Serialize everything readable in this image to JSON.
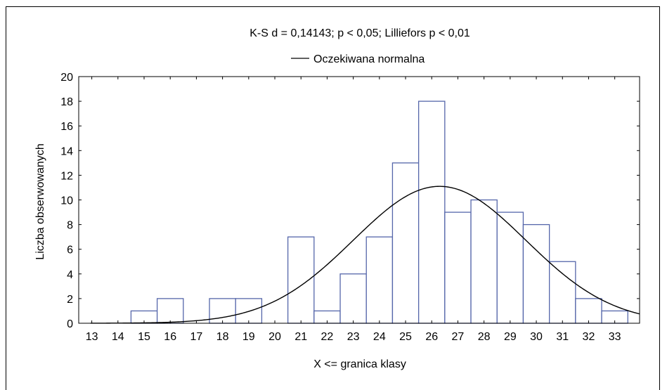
{
  "chart_data": {
    "type": "bar",
    "title": "K-S d = 0,14143; p < 0,05; Lilliefors p < 0,01",
    "legend": {
      "placement": "top-center",
      "entries": [
        {
          "label": "Oczekiwana normalna",
          "style": "line",
          "color": "#000000"
        }
      ]
    },
    "xlabel": "X <= granica klasy",
    "ylabel": "Liczba obserwowanych",
    "xlim": [
      12.5,
      33.95
    ],
    "ylim": [
      0,
      20
    ],
    "x_ticks": [
      "13",
      "14",
      "15",
      "16",
      "17",
      "18",
      "19",
      "20",
      "21",
      "22",
      "23",
      "24",
      "25",
      "26",
      "27",
      "28",
      "29",
      "30",
      "31",
      "32",
      "33"
    ],
    "y_ticks": [
      "0",
      "2",
      "4",
      "6",
      "8",
      "10",
      "12",
      "14",
      "16",
      "18",
      "20"
    ],
    "bins": [
      {
        "label": "15",
        "value": 1
      },
      {
        "label": "16",
        "value": 2
      },
      {
        "label": "17",
        "value": 0
      },
      {
        "label": "18",
        "value": 2
      },
      {
        "label": "19",
        "value": 2
      },
      {
        "label": "20",
        "value": 0
      },
      {
        "label": "21",
        "value": 7
      },
      {
        "label": "22",
        "value": 1
      },
      {
        "label": "23",
        "value": 4
      },
      {
        "label": "24",
        "value": 7
      },
      {
        "label": "25",
        "value": 13
      },
      {
        "label": "26",
        "value": 18
      },
      {
        "label": "27",
        "value": 9
      },
      {
        "label": "28",
        "value": 10
      },
      {
        "label": "29",
        "value": 9
      },
      {
        "label": "30",
        "value": 8
      },
      {
        "label": "31",
        "value": 5
      },
      {
        "label": "32",
        "value": 2
      },
      {
        "label": "33",
        "value": 1
      }
    ],
    "normal_curve": {
      "mean": 26.3,
      "sd": 3.3,
      "peak": 11.1,
      "color": "#000000"
    },
    "bar_edge_color": "#5566aa",
    "bar_fill_color": "#ffffff",
    "grid": false
  }
}
